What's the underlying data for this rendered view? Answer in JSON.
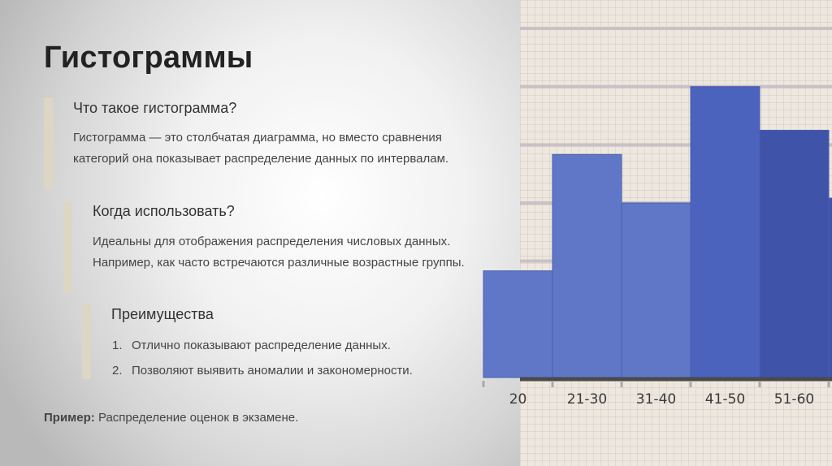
{
  "slide": {
    "title": "Гистограммы",
    "sections": [
      {
        "heading": "Что такое гистограмма?",
        "text": "Гистограмма — это столбчатая диаграмма, но вместо сравнения категорий она показывает распределение данных по интервалам."
      },
      {
        "heading": "Когда использовать?",
        "text": "Идеальны для отображения распределения числовых данных. Например, как часто встречаются различные возрастные группы."
      },
      {
        "heading": "Преимущества",
        "items": [
          {
            "num": "1.",
            "text": "Отлично показывают распределение данных."
          },
          {
            "num": "2.",
            "text": "Позволяют выявить аномалии и закономерности."
          }
        ]
      }
    ],
    "example": {
      "label": "Пример:",
      "text": "Распределение оценок в экзамене."
    }
  },
  "colors": {
    "accent_bar": "#ddd6c4",
    "bar_light": "#5f77c6",
    "bar_dark": "#3f53a8",
    "bar_tall": "#4b63bd"
  },
  "chart_data": {
    "type": "bar",
    "categories": [
      "20",
      "21-30",
      "31-40",
      "41-50",
      "51-60",
      ""
    ],
    "values": [
      22,
      46,
      36,
      60,
      51,
      37
    ],
    "ylim": [
      0,
      72
    ],
    "grid": true
  }
}
